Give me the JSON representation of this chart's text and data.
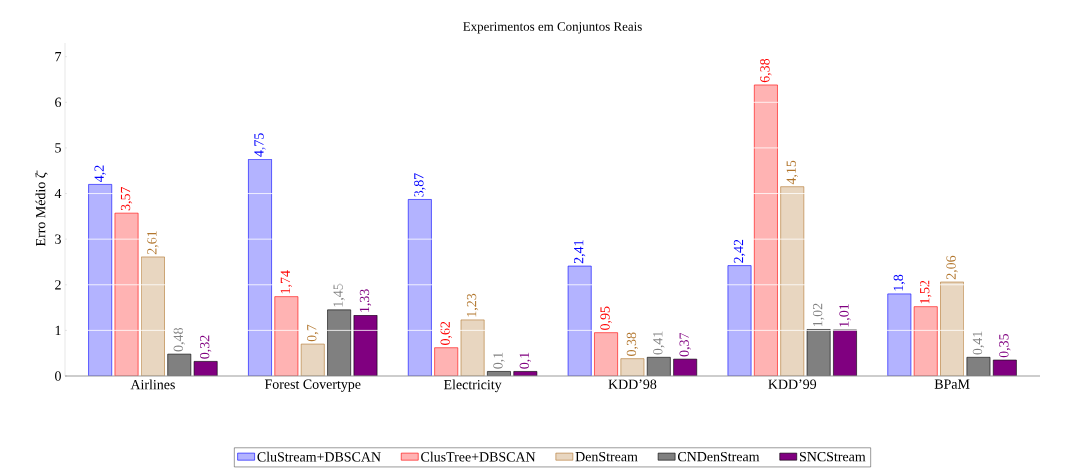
{
  "chart_data": {
    "type": "bar",
    "title": "Experimentos em Conjuntos Reais",
    "ylabel": "Erro Médio ζ̄",
    "categories": [
      "Airlines",
      "Forest Covertype",
      "Electricity",
      "KDD’98",
      "KDD’99",
      "BPaM"
    ],
    "series": [
      {
        "name": "CluStream+DBSCAN",
        "color": "#b3b3ff",
        "values": [
          4.2,
          4.75,
          3.87,
          2.41,
          2.42,
          1.8
        ],
        "value_labels": [
          "4,2",
          "4,75",
          "3,87",
          "2,41",
          "2,42",
          "1,8"
        ]
      },
      {
        "name": "ClusTree+DBSCAN",
        "color": "#ffb3b3",
        "values": [
          3.57,
          1.74,
          0.62,
          0.95,
          6.38,
          1.52
        ],
        "value_labels": [
          "3,57",
          "1,74",
          "0,62",
          "0,95",
          "6,38",
          "1,52"
        ]
      },
      {
        "name": "DenStream",
        "color": "#e8d6c0",
        "values": [
          2.61,
          0.7,
          1.23,
          0.38,
          4.15,
          2.06
        ],
        "value_labels": [
          "2,61",
          "0,7",
          "1,23",
          "0,38",
          "4,15",
          "2,06"
        ]
      },
      {
        "name": "CNDenStream",
        "color": "#808080",
        "values": [
          0.48,
          1.45,
          0.1,
          0.41,
          1.02,
          0.41
        ],
        "value_labels": [
          "0,48",
          "1,45",
          "0,1",
          "0,41",
          "1,02",
          "0,41"
        ]
      },
      {
        "name": "SNCStream",
        "color": "#800080",
        "values": [
          0.32,
          1.33,
          0.1,
          0.37,
          1.01,
          0.35
        ],
        "value_labels": [
          "0,32",
          "1,33",
          "0,1",
          "0,37",
          "1,01",
          "0,35"
        ]
      }
    ],
    "ylim": [
      0,
      7.3
    ],
    "yticks": [
      0,
      1,
      2,
      3,
      4,
      5,
      6,
      7
    ],
    "grid": "y",
    "legend": "bottom"
  }
}
